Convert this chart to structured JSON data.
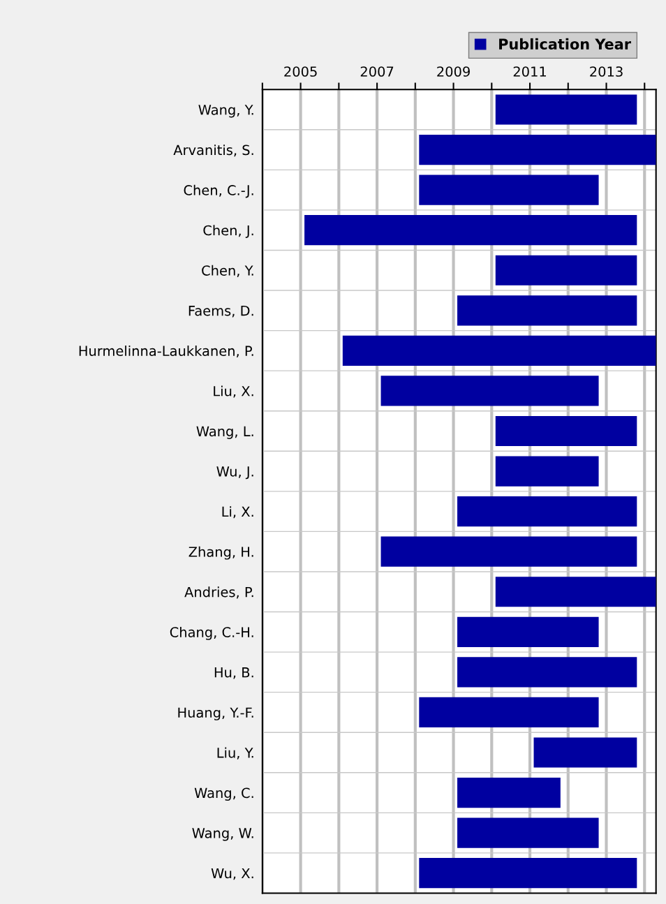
{
  "chart_data": {
    "type": "bar",
    "orientation": "horizontal",
    "categories": [
      "Wang, Y.",
      "Arvanitis, S.",
      "Chen, C.-J.",
      "Chen, J.",
      "Chen, Y.",
      "Faems, D.",
      "Hurmelinna-Laukkanen, P.",
      "Liu, X.",
      "Wang, L.",
      "Wu, J.",
      "Li, X.",
      "Zhang, H.",
      "Andries, P.",
      "Chang, C.-H.",
      "Hu, B.",
      "Huang, Y.-F.",
      "Liu, Y.",
      "Wang, C.",
      "Wang, W.",
      "Wu, X."
    ],
    "series": [
      {
        "name": "Publication Year",
        "color": "#0000a0",
        "base": [
          2010.1,
          2008.1,
          2008.1,
          2005.1,
          2010.1,
          2009.1,
          2006.1,
          2007.1,
          2010.1,
          2010.1,
          2009.1,
          2007.1,
          2010.1,
          2009.1,
          2009.1,
          2008.1,
          2011.1,
          2009.1,
          2009.1,
          2008.1
        ],
        "values": [
          3.7,
          6.2,
          4.7,
          8.7,
          3.7,
          4.7,
          8.2,
          5.7,
          3.7,
          2.7,
          4.7,
          6.7,
          4.2,
          3.7,
          4.7,
          4.7,
          2.7,
          2.7,
          3.7,
          5.7
        ]
      }
    ],
    "xlim": [
      2004,
      2014.3
    ],
    "xticks": [
      {
        "value": 2004,
        "label": null
      },
      2005,
      {
        "value": 2006,
        "label": null
      },
      2007,
      {
        "value": 2008,
        "label": null
      },
      2009,
      {
        "value": 2010,
        "label": null
      },
      2011,
      {
        "value": 2012,
        "label": null
      },
      2013,
      {
        "value": 2014,
        "label": null
      }
    ],
    "grid": "x",
    "legend": "top right"
  }
}
